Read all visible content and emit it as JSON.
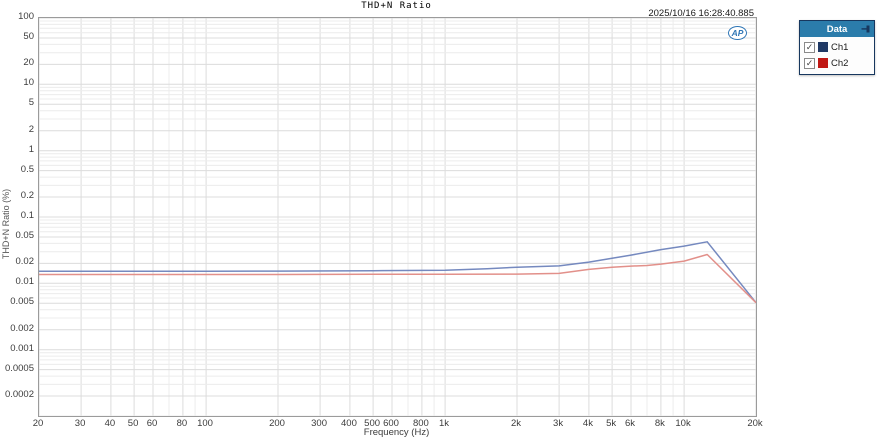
{
  "header": {
    "title": "THD+N Ratio",
    "timestamp": "2025/10/16 16:28:40.885"
  },
  "logo": {
    "text": "AP",
    "color": "#2e75b5"
  },
  "legend": {
    "title": "Data",
    "items": [
      {
        "label": "Ch1",
        "checked": true,
        "check_glyph": "✓",
        "swatch_color": "#1f3864"
      },
      {
        "label": "Ch2",
        "checked": true,
        "check_glyph": "✓",
        "swatch_color": "#c01814"
      }
    ]
  },
  "chart_data": {
    "type": "line",
    "title": "THD+N Ratio",
    "xlabel": "Frequency (Hz)",
    "ylabel": "THD+N Ratio (%)",
    "x_scale": "log",
    "y_scale": "log",
    "xlim": [
      20,
      20000
    ],
    "ylim": [
      0.0001,
      100
    ],
    "grid": {
      "minor_color": "#ececec",
      "major_color": "#dcdcdc",
      "border_color": "#9b9b9b"
    },
    "x_ticks": [
      {
        "value": 20,
        "label": "20"
      },
      {
        "value": 30,
        "label": "30"
      },
      {
        "value": 40,
        "label": "40"
      },
      {
        "value": 50,
        "label": "50"
      },
      {
        "value": 60,
        "label": "60"
      },
      {
        "value": 80,
        "label": "80"
      },
      {
        "value": 100,
        "label": "100"
      },
      {
        "value": 200,
        "label": "200"
      },
      {
        "value": 300,
        "label": "300"
      },
      {
        "value": 400,
        "label": "400"
      },
      {
        "value": 500,
        "label": "500"
      },
      {
        "value": 600,
        "label": "600"
      },
      {
        "value": 800,
        "label": "800"
      },
      {
        "value": 1000,
        "label": "1k"
      },
      {
        "value": 2000,
        "label": "2k"
      },
      {
        "value": 3000,
        "label": "3k"
      },
      {
        "value": 4000,
        "label": "4k"
      },
      {
        "value": 5000,
        "label": "5k"
      },
      {
        "value": 6000,
        "label": "6k"
      },
      {
        "value": 8000,
        "label": "8k"
      },
      {
        "value": 10000,
        "label": "10k"
      },
      {
        "value": 20000,
        "label": "20k"
      }
    ],
    "y_ticks": [
      {
        "value": 100,
        "label": "100"
      },
      {
        "value": 50,
        "label": "50"
      },
      {
        "value": 20,
        "label": "20"
      },
      {
        "value": 10,
        "label": "10"
      },
      {
        "value": 5,
        "label": "5"
      },
      {
        "value": 2,
        "label": "2"
      },
      {
        "value": 1,
        "label": "1"
      },
      {
        "value": 0.5,
        "label": "0.5"
      },
      {
        "value": 0.2,
        "label": "0.2"
      },
      {
        "value": 0.1,
        "label": "0.1"
      },
      {
        "value": 0.05,
        "label": "0.05"
      },
      {
        "value": 0.02,
        "label": "0.02"
      },
      {
        "value": 0.01,
        "label": "0.01"
      },
      {
        "value": 0.005,
        "label": "0.005"
      },
      {
        "value": 0.002,
        "label": "0.002"
      },
      {
        "value": 0.001,
        "label": "0.001"
      },
      {
        "value": 0.0005,
        "label": "0.0005"
      },
      {
        "value": 0.0002,
        "label": "0.0002"
      }
    ],
    "series": [
      {
        "name": "Ch1",
        "color": "#7589bf",
        "points": [
          [
            20,
            0.0152
          ],
          [
            30,
            0.0152
          ],
          [
            50,
            0.0152
          ],
          [
            100,
            0.0152
          ],
          [
            200,
            0.0153
          ],
          [
            500,
            0.0155
          ],
          [
            1000,
            0.0158
          ],
          [
            1500,
            0.0166
          ],
          [
            2000,
            0.0175
          ],
          [
            3000,
            0.0183
          ],
          [
            4000,
            0.0209
          ],
          [
            5000,
            0.0239
          ],
          [
            6000,
            0.0266
          ],
          [
            8000,
            0.0323
          ],
          [
            10000,
            0.0364
          ],
          [
            12500,
            0.0423
          ],
          [
            20000,
            0.0051
          ]
        ]
      },
      {
        "name": "Ch2",
        "color": "#e2908a",
        "points": [
          [
            20,
            0.0136
          ],
          [
            50,
            0.0136
          ],
          [
            100,
            0.0136
          ],
          [
            200,
            0.0136
          ],
          [
            500,
            0.0137
          ],
          [
            1000,
            0.0137
          ],
          [
            2000,
            0.0138
          ],
          [
            3000,
            0.0141
          ],
          [
            4000,
            0.0162
          ],
          [
            5000,
            0.0175
          ],
          [
            6000,
            0.0182
          ],
          [
            7000,
            0.0186
          ],
          [
            8000,
            0.0195
          ],
          [
            10000,
            0.0216
          ],
          [
            12500,
            0.0272
          ],
          [
            20000,
            0.0051
          ]
        ]
      }
    ],
    "legend_position": "top-right-outside"
  }
}
